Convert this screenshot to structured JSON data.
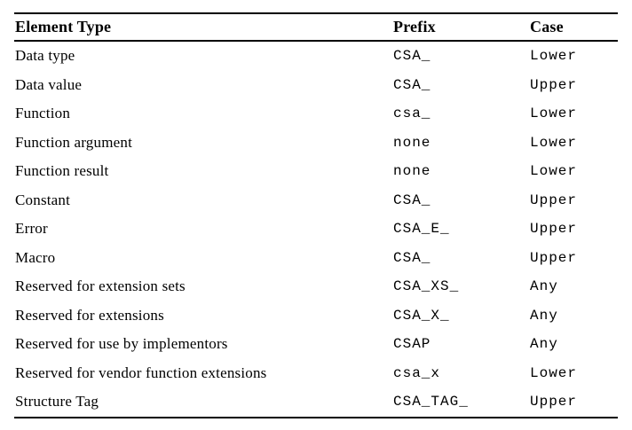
{
  "colors": {
    "background": "#ffffff",
    "text": "#000000",
    "rule": "#000000"
  },
  "table": {
    "columns": [
      {
        "key": "element_type",
        "label": "Element Type"
      },
      {
        "key": "prefix",
        "label": "Prefix"
      },
      {
        "key": "case",
        "label": "Case"
      }
    ],
    "rows": [
      {
        "element_type": "Data type",
        "prefix": "CSA_",
        "case": "Lower"
      },
      {
        "element_type": "Data value",
        "prefix": "CSA_",
        "case": "Upper"
      },
      {
        "element_type": "Function",
        "prefix": "csa_",
        "case": "Lower"
      },
      {
        "element_type": "Function argument",
        "prefix": "none",
        "case": "Lower"
      },
      {
        "element_type": "Function result",
        "prefix": "none",
        "case": "Lower"
      },
      {
        "element_type": "Constant",
        "prefix": "CSA_",
        "case": "Upper"
      },
      {
        "element_type": "Error",
        "prefix": "CSA_E_",
        "case": "Upper"
      },
      {
        "element_type": "Macro",
        "prefix": "CSA_",
        "case": "Upper"
      },
      {
        "element_type": "Reserved for extension sets",
        "prefix": "CSA_XS_",
        "case": "Any"
      },
      {
        "element_type": "Reserved for extensions",
        "prefix": "CSA_X_",
        "case": "Any"
      },
      {
        "element_type": "Reserved for use by implementors",
        "prefix": "CSAP",
        "case": "Any"
      },
      {
        "element_type": "Reserved for vendor function extensions",
        "prefix": "csa_x",
        "case": "Lower"
      },
      {
        "element_type": "Structure Tag",
        "prefix": "CSA_TAG_",
        "case": "Upper"
      }
    ]
  }
}
